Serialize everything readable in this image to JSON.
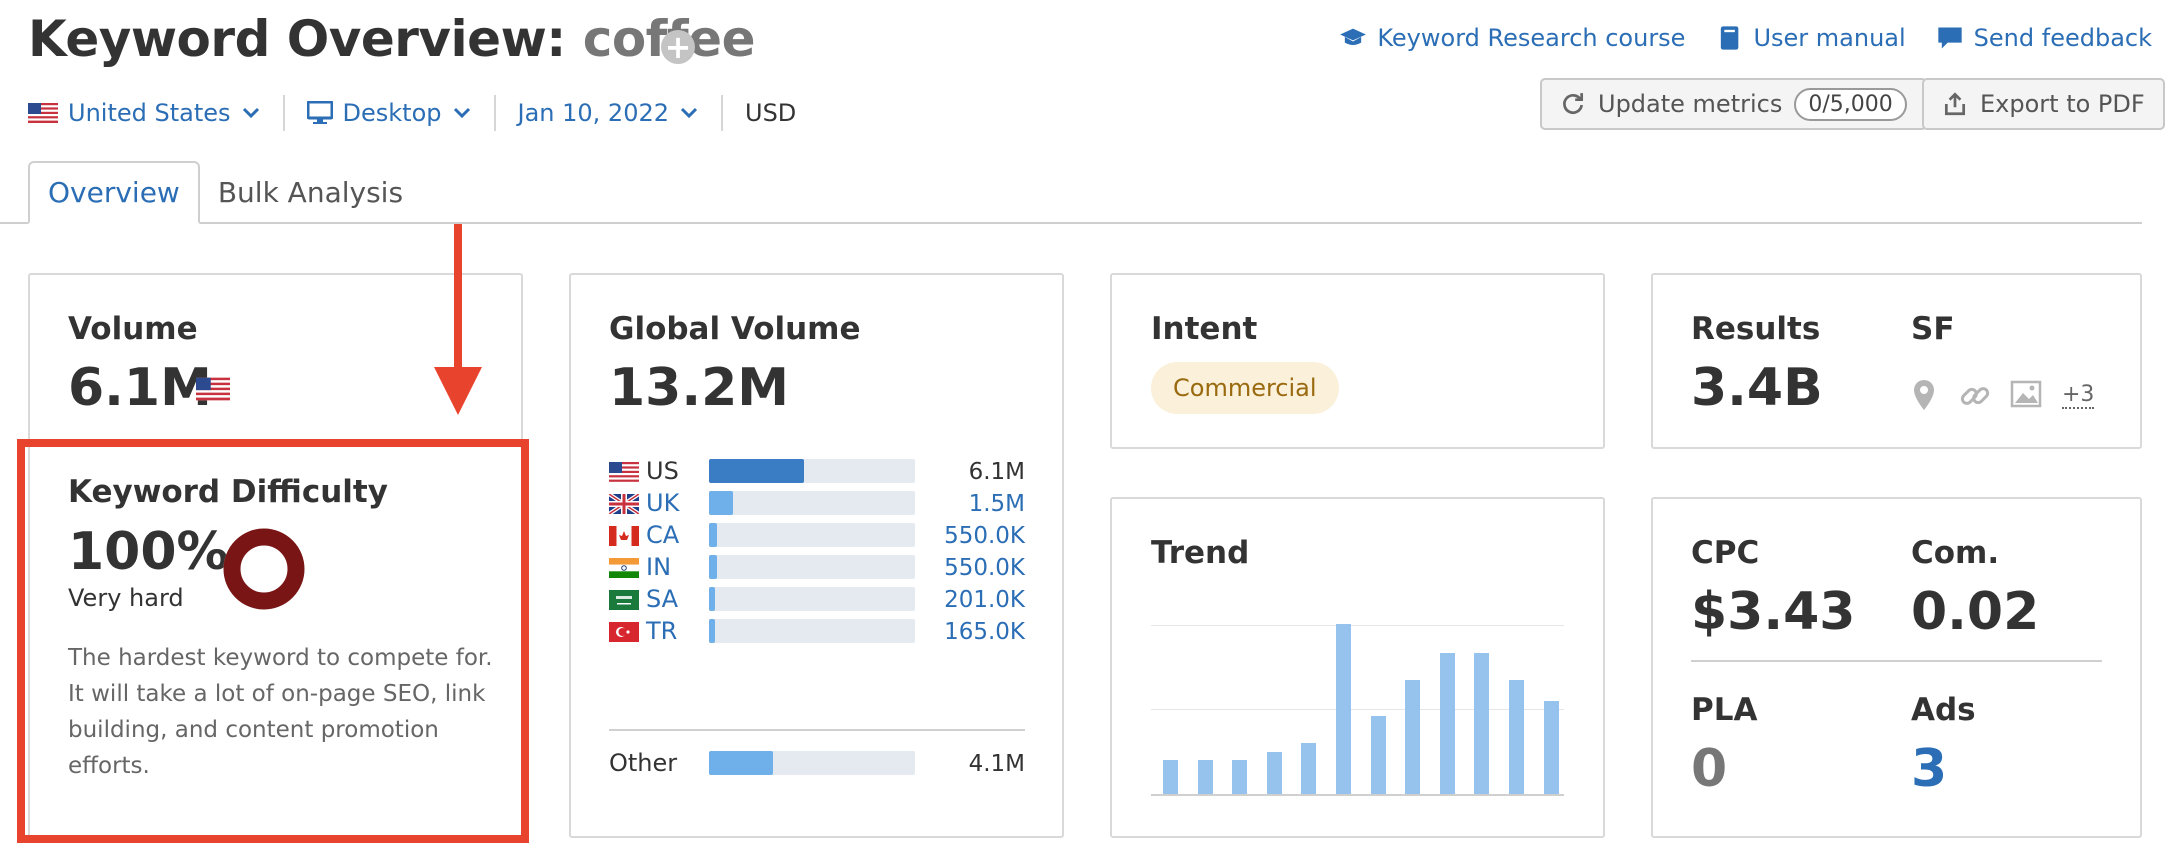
{
  "header": {
    "title": "Keyword Overview:",
    "keyword": "coffee",
    "plus": "+",
    "links": {
      "course": "Keyword Research course",
      "manual": "User manual",
      "feedback": "Send feedback"
    }
  },
  "filters": {
    "country": "United States",
    "device": "Desktop",
    "date": "Jan 10, 2022",
    "currency": "USD"
  },
  "buttons": {
    "update_label": "Update metrics",
    "update_count": "0/5,000",
    "export_label": "Export to PDF"
  },
  "tabs": [
    "Overview",
    "Bulk Analysis"
  ],
  "volume": {
    "label": "Volume",
    "value": "6.1M"
  },
  "keyword_difficulty": {
    "label": "Keyword Difficulty",
    "value": "100%",
    "difficulty_fraction": 1.0,
    "level": "Very hard",
    "description": "The hardest keyword to compete for. It will take a lot of on-page SEO, link building, and content promotion efforts."
  },
  "global_volume": {
    "label": "Global Volume",
    "value": "13.2M",
    "countries": [
      {
        "code": "US",
        "value": "6.1M",
        "share": 0.46
      },
      {
        "code": "UK",
        "value": "1.5M",
        "share": 0.115
      },
      {
        "code": "CA",
        "value": "550.0K",
        "share": 0.04
      },
      {
        "code": "IN",
        "value": "550.0K",
        "share": 0.04
      },
      {
        "code": "SA",
        "value": "201.0K",
        "share": 0.03
      },
      {
        "code": "TR",
        "value": "165.0K",
        "share": 0.03
      }
    ],
    "other": {
      "label": "Other",
      "value": "4.1M",
      "share": 0.31
    }
  },
  "intent": {
    "label": "Intent",
    "value": "Commercial"
  },
  "trend": {
    "label": "Trend",
    "values": [
      0.2,
      0.2,
      0.2,
      0.25,
      0.3,
      1.0,
      0.46,
      0.67,
      0.83,
      0.83,
      0.67,
      0.55
    ]
  },
  "results": {
    "label": "Results",
    "value": "3.4B"
  },
  "serp_features": {
    "label": "SF",
    "more": "+3"
  },
  "cpc": {
    "label": "CPC",
    "value": "$3.43"
  },
  "competition": {
    "label": "Com.",
    "value": "0.02"
  },
  "pla": {
    "label": "PLA",
    "value": "0"
  },
  "ads": {
    "label": "Ads",
    "value": "3"
  },
  "colors": {
    "link_blue": "#2b6eb5",
    "kd_ring": "#7a1515",
    "bar_dark": "#3b7dc4",
    "bar_light": "#6fb0ea",
    "trend_bar": "#95c3ee",
    "annotation_red": "#e8432d",
    "intent_bg": "#fbf0d9"
  }
}
